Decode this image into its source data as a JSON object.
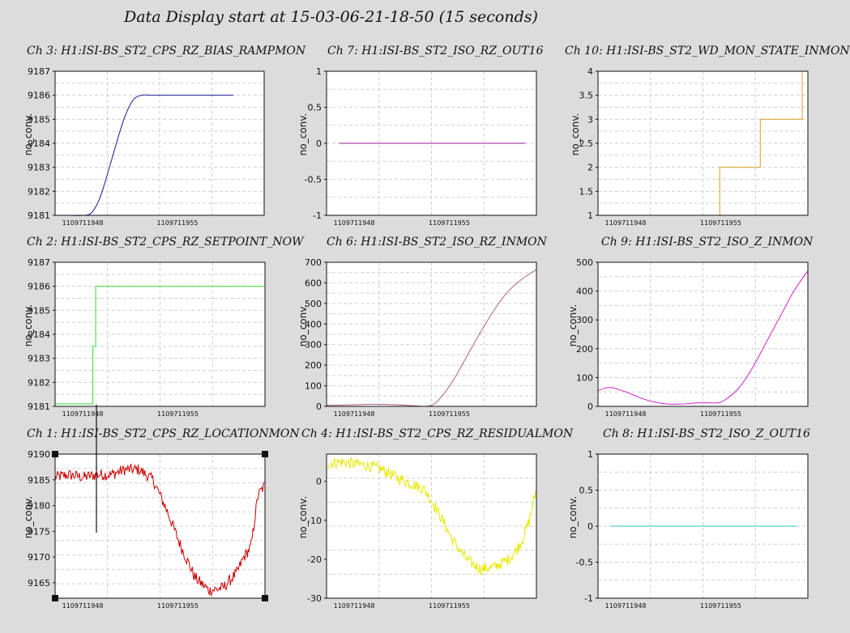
{
  "header": {
    "title": "Data Display start at 15-03-06-21-18-50 (15 seconds)"
  },
  "colors": {
    "ch3": "#1a1a9a",
    "ch7": "#9a1a9a",
    "ch10": "#d8a020",
    "ch2": "#33dd33",
    "ch6": "#b06070",
    "ch9": "#d020d0",
    "ch1": "#cc0000",
    "ch4": "#e8e800",
    "ch8": "#20c8c8"
  },
  "chart_data": [
    {
      "id": "ch3",
      "type": "line",
      "title": "Ch 3: H1:ISI-BS_ST2_CPS_RZ_BIAS_RAMPMON",
      "ylabel": "no_conv.",
      "yticks": [
        "9187",
        "9186",
        "9185",
        "9184",
        "9183",
        "9182",
        "9181"
      ],
      "ylim": [
        9181,
        9187
      ],
      "xlim": [
        0,
        15
      ],
      "xticks": [
        "1109711948",
        "1109711955"
      ],
      "xtick_positions": [
        0.5,
        7.3
      ],
      "x": [
        0,
        1,
        2,
        2.6,
        3.2,
        3.8,
        4.4,
        5.0,
        5.6,
        6.2,
        7,
        9,
        11,
        12.8
      ],
      "y": [
        9181.0,
        9181.0,
        9181.0,
        9181.1,
        9181.7,
        9182.8,
        9184.0,
        9185.1,
        9185.8,
        9186.0,
        9186.0,
        9186.0,
        9186.0,
        9186.0
      ],
      "grid": true
    },
    {
      "id": "ch7",
      "type": "line",
      "title": "Ch 7: H1:ISI-BS_ST2_ISO_RZ_OUT16",
      "ylabel": "no_conv.",
      "yticks": [
        "1",
        "0.5",
        "0",
        "-0.5",
        "-1"
      ],
      "ylim": [
        -1,
        1
      ],
      "xlim": [
        0,
        15
      ],
      "xticks": [
        "1109711948",
        "1109711955"
      ],
      "xtick_positions": [
        0.5,
        7.3
      ],
      "x": [
        0.9,
        14.2
      ],
      "y": [
        0,
        0
      ],
      "grid": true
    },
    {
      "id": "ch10",
      "type": "line",
      "title": "Ch 10: H1:ISI-BS_ST2_WD_MON_STATE_INMON",
      "ylabel": "no_conv.",
      "yticks": [
        "4",
        "3.5",
        "3",
        "2.5",
        "2",
        "1.5",
        "1"
      ],
      "ylim": [
        1,
        4
      ],
      "xlim": [
        0,
        15
      ],
      "xticks": [
        "1109711948",
        "1109711955"
      ],
      "xtick_positions": [
        0.5,
        7.3
      ],
      "step": true,
      "x": [
        8.7,
        8.7,
        11.6,
        11.6,
        14.6,
        14.6
      ],
      "y": [
        1,
        2,
        2,
        3,
        3,
        4
      ],
      "grid": true
    },
    {
      "id": "ch2",
      "type": "line",
      "title": "Ch 2: H1:ISI-BS_ST2_CPS_RZ_SETPOINT_NOW",
      "ylabel": "no_conv.",
      "yticks": [
        "9187",
        "9186",
        "9185",
        "9184",
        "9183",
        "9182",
        "9181"
      ],
      "ylim": [
        9181,
        9187
      ],
      "xlim": [
        0,
        15
      ],
      "xticks": [
        "1109711948",
        "1109711955"
      ],
      "xtick_positions": [
        0.5,
        7.3
      ],
      "x": [
        0,
        2.7,
        2.7,
        2.9,
        2.9,
        15
      ],
      "y": [
        9181.1,
        9181.1,
        9183.5,
        9183.5,
        9186.0,
        9186.0
      ],
      "grid": true
    },
    {
      "id": "ch6",
      "type": "line",
      "title": "Ch 6: H1:ISI-BS_ST2_ISO_RZ_INMON",
      "ylabel": "no_conv.",
      "yticks": [
        "700",
        "600",
        "500",
        "400",
        "300",
        "200",
        "100",
        "0"
      ],
      "ylim": [
        0,
        700
      ],
      "xlim": [
        0,
        15
      ],
      "xticks": [
        "1109711948",
        "1109711955"
      ],
      "xtick_positions": [
        0.5,
        7.3
      ],
      "x": [
        0,
        1,
        2,
        3,
        4,
        5,
        6,
        7,
        7.5,
        8,
        9,
        10,
        11,
        12,
        13,
        14,
        15
      ],
      "y": [
        5,
        6,
        8,
        10,
        10,
        8,
        4,
        0,
        5,
        30,
        120,
        240,
        360,
        470,
        560,
        620,
        665
      ],
      "grid": true
    },
    {
      "id": "ch9",
      "type": "line",
      "title": "Ch 9: H1:ISI-BS_ST2_ISO_Z_INMON",
      "ylabel": "no_conv.",
      "yticks": [
        "500",
        "400",
        "300",
        "200",
        "100",
        "0"
      ],
      "ylim": [
        0,
        500
      ],
      "xlim": [
        0,
        15
      ],
      "xticks": [
        "1109711948",
        "1109711955"
      ],
      "xtick_positions": [
        0.5,
        7.3
      ],
      "x": [
        0,
        0.5,
        1,
        2,
        3,
        4,
        5,
        6,
        7,
        8,
        8.5,
        9,
        10,
        11,
        12,
        13,
        14,
        15
      ],
      "y": [
        55,
        63,
        65,
        50,
        30,
        15,
        8,
        8,
        12,
        12,
        12,
        20,
        60,
        130,
        220,
        310,
        400,
        470
      ],
      "grid": true
    },
    {
      "id": "ch1",
      "type": "line",
      "title": "Ch 1: H1:ISI-BS_ST2_CPS_RZ_LOCATIONMON",
      "ylabel": "no_conv.",
      "yticks": [
        "9190",
        "9185",
        "9180",
        "9175",
        "9170",
        "9165"
      ],
      "ylim": [
        9162,
        9190
      ],
      "xlim": [
        0,
        15
      ],
      "xticks": [
        "1109711948",
        "1109711955"
      ],
      "xtick_positions": [
        0.5,
        7.3
      ],
      "x": [
        0,
        1,
        2,
        3,
        4,
        5,
        6,
        7,
        8,
        9,
        10,
        11,
        12,
        13,
        13.5,
        14,
        14.5,
        15
      ],
      "y": [
        9185.5,
        9186,
        9185.5,
        9186,
        9186,
        9187,
        9187,
        9185,
        9179,
        9172,
        9166,
        9163.5,
        9164,
        9167,
        9170,
        9172,
        9182,
        9184
      ],
      "noise": 1.2,
      "grid": true
    },
    {
      "id": "ch4",
      "type": "line",
      "title": "Ch 4: H1:ISI-BS_ST2_CPS_RZ_RESIDUALMON",
      "ylabel": "no_conv.",
      "yticks": [
        "0",
        "-10",
        "-20",
        "-30"
      ],
      "ylim": [
        -30,
        7
      ],
      "xlim": [
        0,
        15
      ],
      "xticks": [
        "1109711948",
        "1109711955"
      ],
      "xtick_positions": [
        0.5,
        7.3
      ],
      "x": [
        0,
        1,
        2,
        3,
        4,
        5,
        6,
        7,
        8,
        9,
        10,
        11,
        12,
        13,
        13.5,
        14,
        14.5,
        15
      ],
      "y": [
        4.5,
        5,
        4.5,
        4,
        3,
        1,
        -0.5,
        -2,
        -8,
        -15,
        -20,
        -22.5,
        -22,
        -20,
        -18,
        -15,
        -10,
        -2
      ],
      "noise": 1.2,
      "grid": true
    },
    {
      "id": "ch8",
      "type": "line",
      "title": "Ch 8: H1:ISI-BS_ST2_ISO_Z_OUT16",
      "ylabel": "no_conv.",
      "yticks": [
        "1",
        "0.5",
        "0",
        "-0.5",
        "-1"
      ],
      "ylim": [
        -1,
        1
      ],
      "xlim": [
        0,
        15
      ],
      "xticks": [
        "1109711948",
        "1109711955"
      ],
      "xtick_positions": [
        0.5,
        7.3
      ],
      "x": [
        0.9,
        14.2
      ],
      "y": [
        0,
        0
      ],
      "grid": true
    }
  ]
}
